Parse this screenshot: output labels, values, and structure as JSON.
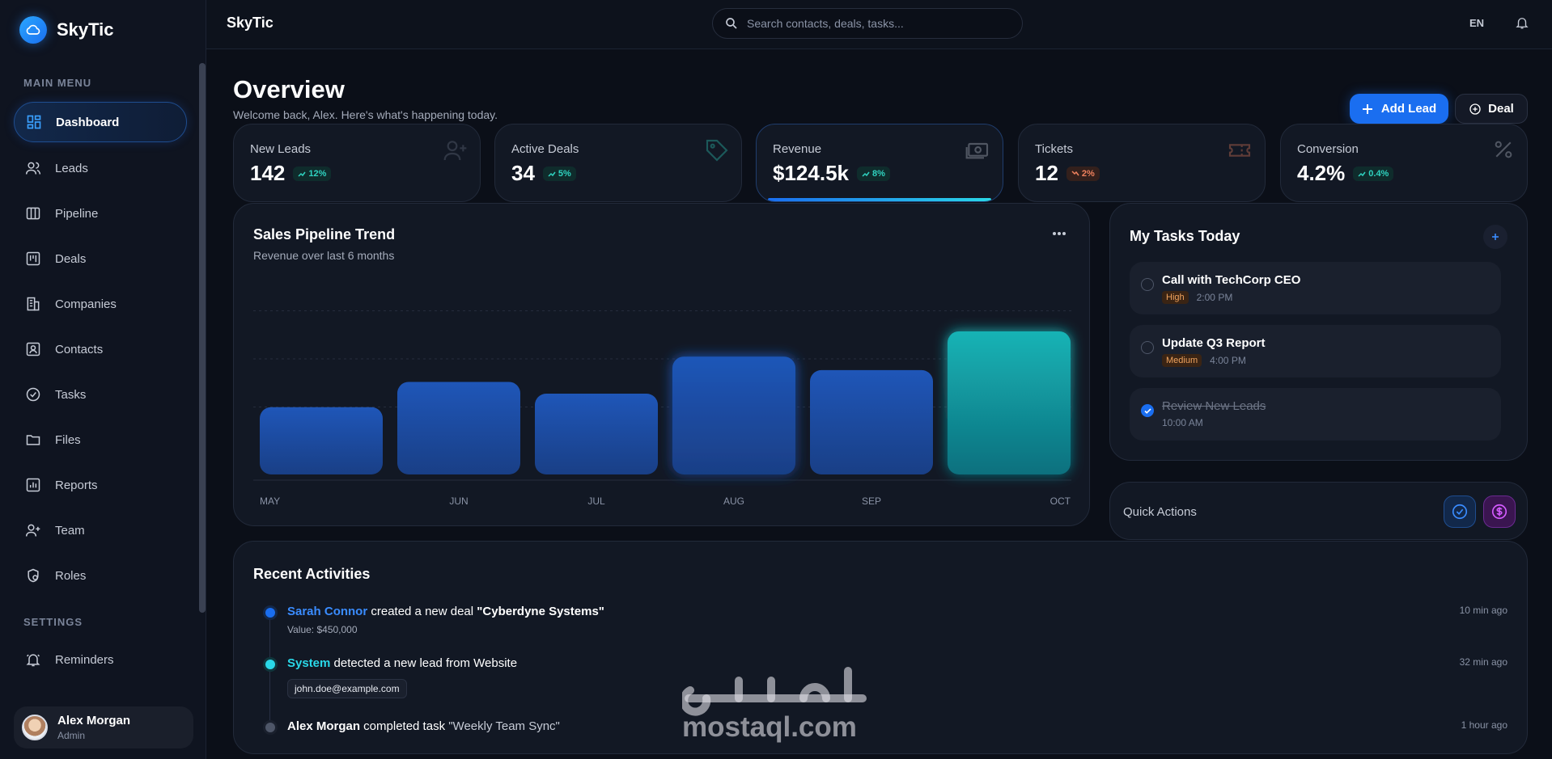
{
  "app": {
    "brand": "SkyTic"
  },
  "sidebar": {
    "main_menu_label": "MAIN MENU",
    "settings_label": "SETTINGS",
    "items": [
      {
        "label": "Dashboard",
        "icon": "dashboard-icon"
      },
      {
        "label": "Leads",
        "icon": "users-icon"
      },
      {
        "label": "Pipeline",
        "icon": "columns-icon"
      },
      {
        "label": "Deals",
        "icon": "kanban-icon"
      },
      {
        "label": "Companies",
        "icon": "building-icon"
      },
      {
        "label": "Contacts",
        "icon": "contact-card-icon"
      },
      {
        "label": "Tasks",
        "icon": "check-circle-icon"
      },
      {
        "label": "Files",
        "icon": "folder-icon"
      },
      {
        "label": "Reports",
        "icon": "report-icon"
      },
      {
        "label": "Team",
        "icon": "user-plus-icon"
      },
      {
        "label": "Roles",
        "icon": "shield-icon"
      }
    ],
    "settings_items": [
      {
        "label": "Reminders",
        "icon": "bell-ring-icon"
      }
    ],
    "user": {
      "name": "Alex Morgan",
      "role": "Admin"
    }
  },
  "topbar": {
    "title": "SkyTic",
    "search_placeholder": "Search contacts, deals, tasks...",
    "language": "EN"
  },
  "header": {
    "title": "Overview",
    "subtitle": "Welcome back, Alex. Here's what's happening today.",
    "add_lead_label": "Add Lead",
    "deal_label": "Deal"
  },
  "stats": [
    {
      "label": "New Leads",
      "value": "142",
      "change": "12%",
      "trend": "up",
      "icon": "user-plus-icon"
    },
    {
      "label": "Active Deals",
      "value": "34",
      "change": "5%",
      "trend": "up",
      "icon": "tag-icon"
    },
    {
      "label": "Revenue",
      "value": "$124.5k",
      "change": "8%",
      "trend": "up",
      "icon": "money-icon"
    },
    {
      "label": "Tickets",
      "value": "12",
      "change": "2%",
      "trend": "down",
      "icon": "ticket-icon"
    },
    {
      "label": "Conversion",
      "value": "4.2%",
      "change": "0.4%",
      "trend": "up",
      "icon": "percent-icon"
    }
  ],
  "chart": {
    "title": "Sales Pipeline Trend",
    "subtitle": "Revenue over last 6 months"
  },
  "chart_data": {
    "type": "bar",
    "title": "Sales Pipeline Trend",
    "subtitle": "Revenue over last 6 months",
    "categories": [
      "MAY",
      "JUN",
      "JUL",
      "AUG",
      "SEP",
      "OCT"
    ],
    "values": [
      40,
      55,
      48,
      70,
      62,
      85
    ],
    "ylim": [
      0,
      120
    ],
    "grid": true,
    "highlight": "OCT",
    "colors": {
      "bar": "#1c4fa8",
      "highlight": "#14a9b0"
    }
  },
  "tasks": {
    "title": "My Tasks Today",
    "items": [
      {
        "name": "Call with TechCorp CEO",
        "priority": "High",
        "time": "2:00 PM",
        "done": false
      },
      {
        "name": "Update Q3 Report",
        "priority": "Medium",
        "time": "4:00 PM",
        "done": false
      },
      {
        "name": "Review New Leads",
        "priority": "",
        "time": "10:00 AM",
        "done": true
      }
    ]
  },
  "quick_actions": {
    "title": "Quick Actions"
  },
  "activities": {
    "title": "Recent Activities",
    "items": [
      {
        "who": "Sarah Connor",
        "action": " created a new deal ",
        "quote": "\"Cyberdyne Systems\"",
        "detail": "Value: $450,000",
        "time": "10 min ago"
      },
      {
        "who": "System",
        "action": " detected a new lead from Website",
        "quote": "",
        "detail": "john.doe@example.com",
        "time": "32 min ago"
      },
      {
        "who": "Alex Morgan",
        "action": " completed task ",
        "quote": "\"Weekly Team Sync\"",
        "detail": "",
        "time": "1 hour ago"
      }
    ]
  },
  "watermark": {
    "arabic": "مستقل",
    "text": "mostaql.com"
  }
}
